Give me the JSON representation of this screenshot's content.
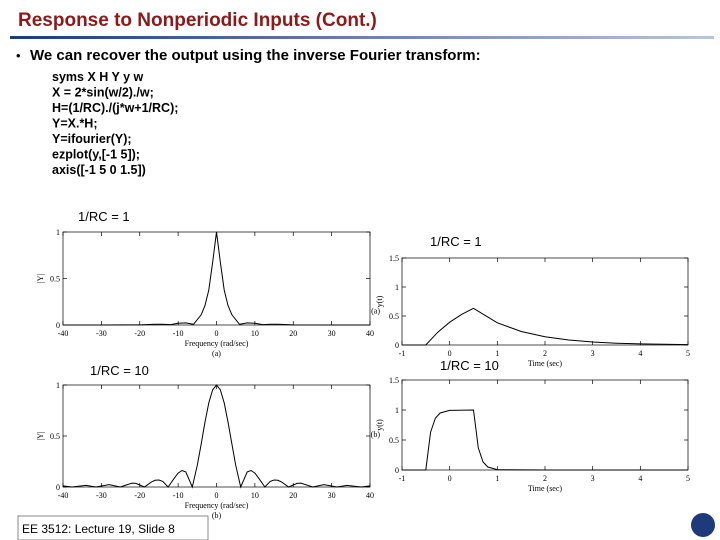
{
  "header": {
    "title": "Response to Nonperiodic Inputs (Cont.)"
  },
  "bullet": "We can recover the output using the inverse Fourier transform:",
  "code": [
    "syms X H Y y w",
    "X = 2*sin(w/2)./w;",
    "H=(1/RC)./(j*w+1/RC);",
    "Y=X.*H;",
    "Y=ifourier(Y);",
    "ezplot(y,[-1 5]);",
    "axis([-1 5 0 1.5])"
  ],
  "footer": "EE 3512: Lecture 19, Slide 8",
  "chart_data": [
    {
      "type": "line",
      "title": "1/RC = 1",
      "x_label": "Frequency (rad/sec)",
      "y_label": "|Y|",
      "caption": "(a)",
      "color": "#000000",
      "x": [
        -40,
        -30,
        -20,
        -16,
        -14,
        -12,
        -10,
        -8,
        -6,
        -4,
        -3,
        -2,
        -1,
        0,
        1,
        2,
        3,
        4,
        6,
        8,
        10,
        12,
        14,
        16,
        20,
        30,
        40
      ],
      "values": [
        0,
        0,
        0.001,
        0.008,
        0.007,
        0.004,
        0.019,
        0.023,
        0.008,
        0.11,
        0.21,
        0.376,
        0.678,
        1,
        0.678,
        0.376,
        0.21,
        0.11,
        0.008,
        0.023,
        0.019,
        0.004,
        0.007,
        0.008,
        0.001,
        0,
        0
      ],
      "xlim": [
        -40,
        40
      ],
      "xticks": [
        -40,
        -30,
        -20,
        -10,
        0,
        10,
        20,
        30,
        40
      ],
      "ylim": [
        0,
        1
      ],
      "yticks": [
        0,
        0.5,
        1
      ]
    },
    {
      "type": "line",
      "title": "1/RC = 1",
      "x_label": "Time (sec)",
      "y_label": "y(t)",
      "caption": "(a)",
      "color": "#000000",
      "x": [
        -1,
        -0.5,
        -0.25,
        0,
        0.25,
        0.5,
        1,
        1.5,
        2,
        2.5,
        3,
        3.5,
        4,
        4.5,
        5
      ],
      "values": [
        0,
        0,
        0.221,
        0.393,
        0.528,
        0.632,
        0.383,
        0.233,
        0.141,
        0.086,
        0.052,
        0.031,
        0.019,
        0.012,
        0.007
      ],
      "xlim": [
        -1,
        5
      ],
      "xticks": [
        -1,
        0,
        1,
        2,
        3,
        4,
        5
      ],
      "ylim": [
        0,
        1.5
      ],
      "yticks": [
        0,
        0.5,
        1,
        1.5
      ]
    },
    {
      "type": "line",
      "title": "1/RC = 10",
      "x_label": "Frequency (rad/sec)",
      "y_label": "|Y|",
      "caption": "(b)",
      "color": "#000000",
      "x": [
        -40,
        -37.7,
        -34,
        -31.4,
        -28,
        -25.1,
        -22,
        -21,
        -18.8,
        -17,
        -16,
        -15,
        -14,
        -12.6,
        -11,
        -10,
        -9,
        -8,
        -6.3,
        -5,
        -4,
        -3,
        -2,
        -1,
        0,
        1,
        2,
        3,
        4,
        5,
        6.3,
        8,
        9,
        10,
        11,
        12.6,
        14,
        15,
        16,
        17,
        18.8,
        21,
        22,
        25.1,
        28,
        31.4,
        34,
        37.7,
        40
      ],
      "values": [
        0.011,
        0,
        0.016,
        0,
        0.024,
        0,
        0.038,
        0.035,
        0,
        0.048,
        0.066,
        0.069,
        0.055,
        0,
        0.086,
        0.136,
        0.162,
        0.148,
        0,
        0.214,
        0.422,
        0.637,
        0.825,
        0.954,
        1,
        0.954,
        0.825,
        0.637,
        0.422,
        0.214,
        0,
        0.148,
        0.162,
        0.136,
        0.086,
        0,
        0.055,
        0.069,
        0.066,
        0.048,
        0,
        0.035,
        0.038,
        0,
        0.024,
        0,
        0.016,
        0,
        0.011
      ],
      "xlim": [
        -40,
        40
      ],
      "xticks": [
        -40,
        -30,
        -20,
        -10,
        0,
        10,
        20,
        30,
        40
      ],
      "ylim": [
        0,
        1
      ],
      "yticks": [
        0,
        0.5,
        1
      ]
    },
    {
      "type": "line",
      "title": "1/RC = 10",
      "x_label": "Time (sec)",
      "y_label": "y(t)",
      "caption": "(b)",
      "color": "#000000",
      "x": [
        -1,
        -0.5,
        -0.4,
        -0.3,
        -0.2,
        0,
        0.5,
        0.6,
        0.7,
        0.8,
        1,
        2,
        5
      ],
      "values": [
        0,
        0,
        0.632,
        0.865,
        0.95,
        0.993,
        1,
        0.368,
        0.135,
        0.05,
        0.007,
        0,
        0
      ],
      "xlim": [
        -1,
        5
      ],
      "xticks": [
        -1,
        0,
        1,
        2,
        3,
        4,
        5
      ],
      "ylim": [
        0,
        1.5
      ],
      "yticks": [
        0,
        0.5,
        1,
        1.5
      ]
    }
  ]
}
